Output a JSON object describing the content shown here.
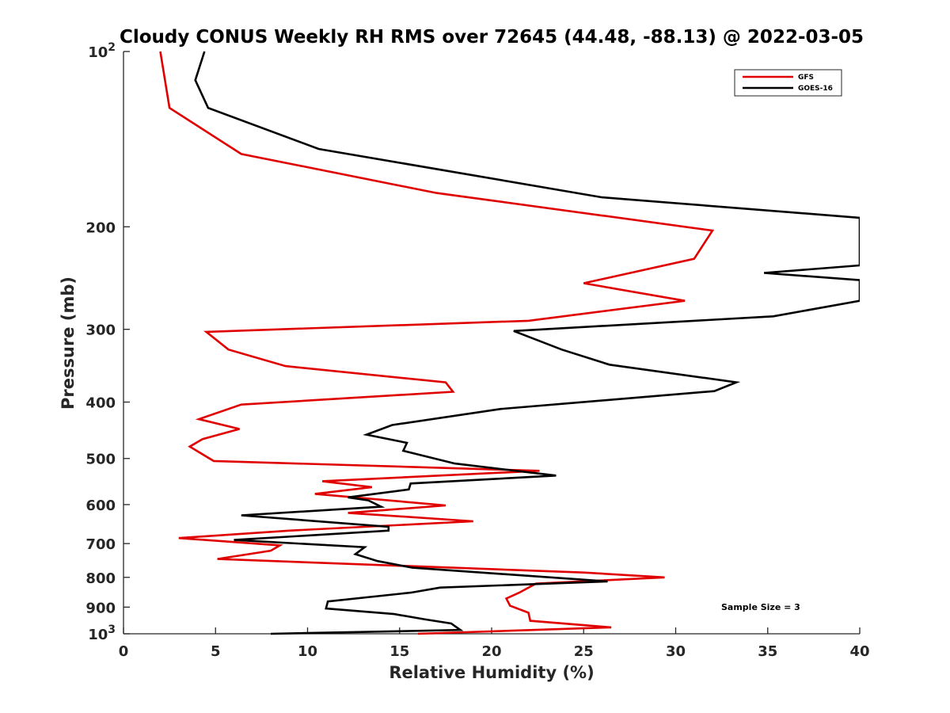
{
  "chart_data": {
    "type": "line",
    "title": "Cloudy CONUS Weekly RH RMS over 72645 (44.48, -88.13) @ 2022-03-05",
    "xlabel": "Relative Humidity (%)",
    "ylabel": "Pressure (mb)",
    "xlim": [
      0,
      40
    ],
    "ylim": [
      100,
      1000
    ],
    "y_scale": "log",
    "y_reversed": true,
    "grid": false,
    "legend_position": "top-right",
    "x_ticks": [
      "0",
      "5",
      "10",
      "15",
      "20",
      "25",
      "30",
      "35",
      "40"
    ],
    "y_ticks": [
      {
        "value": 100,
        "base": "10",
        "exp": "2"
      },
      {
        "value": 200,
        "label": "200"
      },
      {
        "value": 300,
        "label": "300"
      },
      {
        "value": 400,
        "label": "400"
      },
      {
        "value": 500,
        "label": "500"
      },
      {
        "value": 600,
        "label": "600"
      },
      {
        "value": 700,
        "label": "700"
      },
      {
        "value": 800,
        "label": "800"
      },
      {
        "value": 900,
        "label": "900"
      },
      {
        "value": 1000,
        "base": "10",
        "exp": "3"
      }
    ],
    "annotation": "Sample Size = 3",
    "series": [
      {
        "name": "GFS",
        "color": "#e00000",
        "points": [
          [
            2.0,
            100
          ],
          [
            2.5,
            125
          ],
          [
            6.4,
            150
          ],
          [
            17.0,
            175
          ],
          [
            32.0,
            203
          ],
          [
            31.0,
            227
          ],
          [
            25.0,
            250
          ],
          [
            30.5,
            268
          ],
          [
            22.0,
            290
          ],
          [
            4.5,
            303
          ],
          [
            5.7,
            325
          ],
          [
            8.8,
            347
          ],
          [
            17.5,
            370
          ],
          [
            17.9,
            384
          ],
          [
            6.4,
            404
          ],
          [
            4.1,
            428
          ],
          [
            6.3,
            445
          ],
          [
            4.3,
            463
          ],
          [
            3.6,
            477
          ],
          [
            4.9,
            505
          ],
          [
            22.6,
            525
          ],
          [
            10.8,
            547
          ],
          [
            13.5,
            560
          ],
          [
            10.4,
            575
          ],
          [
            17.5,
            602
          ],
          [
            12.2,
            620
          ],
          [
            19.0,
            641
          ],
          [
            9.0,
            665
          ],
          [
            3.0,
            685
          ],
          [
            8.5,
            705
          ],
          [
            8.0,
            720
          ],
          [
            5.1,
            744
          ],
          [
            25.0,
            785
          ],
          [
            29.4,
            800
          ],
          [
            22.4,
            820
          ],
          [
            21.5,
            850
          ],
          [
            20.8,
            870
          ],
          [
            21.0,
            895
          ],
          [
            22.0,
            920
          ],
          [
            22.1,
            950
          ],
          [
            26.5,
            975
          ],
          [
            16.0,
            1000
          ]
        ]
      },
      {
        "name": "GOES-16",
        "color": "#000000",
        "points": [
          [
            4.4,
            100
          ],
          [
            3.9,
            112
          ],
          [
            4.6,
            125
          ],
          [
            10.6,
            147
          ],
          [
            26.0,
            178
          ],
          [
            40.0,
            193
          ],
          [
            40.0,
            233
          ],
          [
            34.8,
            240
          ],
          [
            40.0,
            247
          ],
          [
            40.0,
            268
          ],
          [
            35.3,
            285
          ],
          [
            21.2,
            302
          ],
          [
            23.8,
            325
          ],
          [
            26.4,
            345
          ],
          [
            33.3,
            370
          ],
          [
            32.1,
            383
          ],
          [
            20.5,
            411
          ],
          [
            14.6,
            438
          ],
          [
            13.2,
            455
          ],
          [
            15.4,
            470
          ],
          [
            15.2,
            485
          ],
          [
            18.0,
            510
          ],
          [
            23.5,
            535
          ],
          [
            15.6,
            552
          ],
          [
            15.5,
            565
          ],
          [
            12.2,
            583
          ],
          [
            13.3,
            590
          ],
          [
            14.0,
            605
          ],
          [
            6.4,
            626
          ],
          [
            14.4,
            655
          ],
          [
            14.4,
            665
          ],
          [
            6.0,
            690
          ],
          [
            13.1,
            710
          ],
          [
            12.6,
            730
          ],
          [
            13.8,
            750
          ],
          [
            15.7,
            770
          ],
          [
            26.3,
            813
          ],
          [
            17.2,
            833
          ],
          [
            15.6,
            850
          ],
          [
            11.1,
            880
          ],
          [
            11.0,
            905
          ],
          [
            14.7,
            925
          ],
          [
            16.4,
            945
          ],
          [
            17.8,
            960
          ],
          [
            18.3,
            985
          ],
          [
            8.0,
            1000
          ]
        ]
      }
    ]
  }
}
